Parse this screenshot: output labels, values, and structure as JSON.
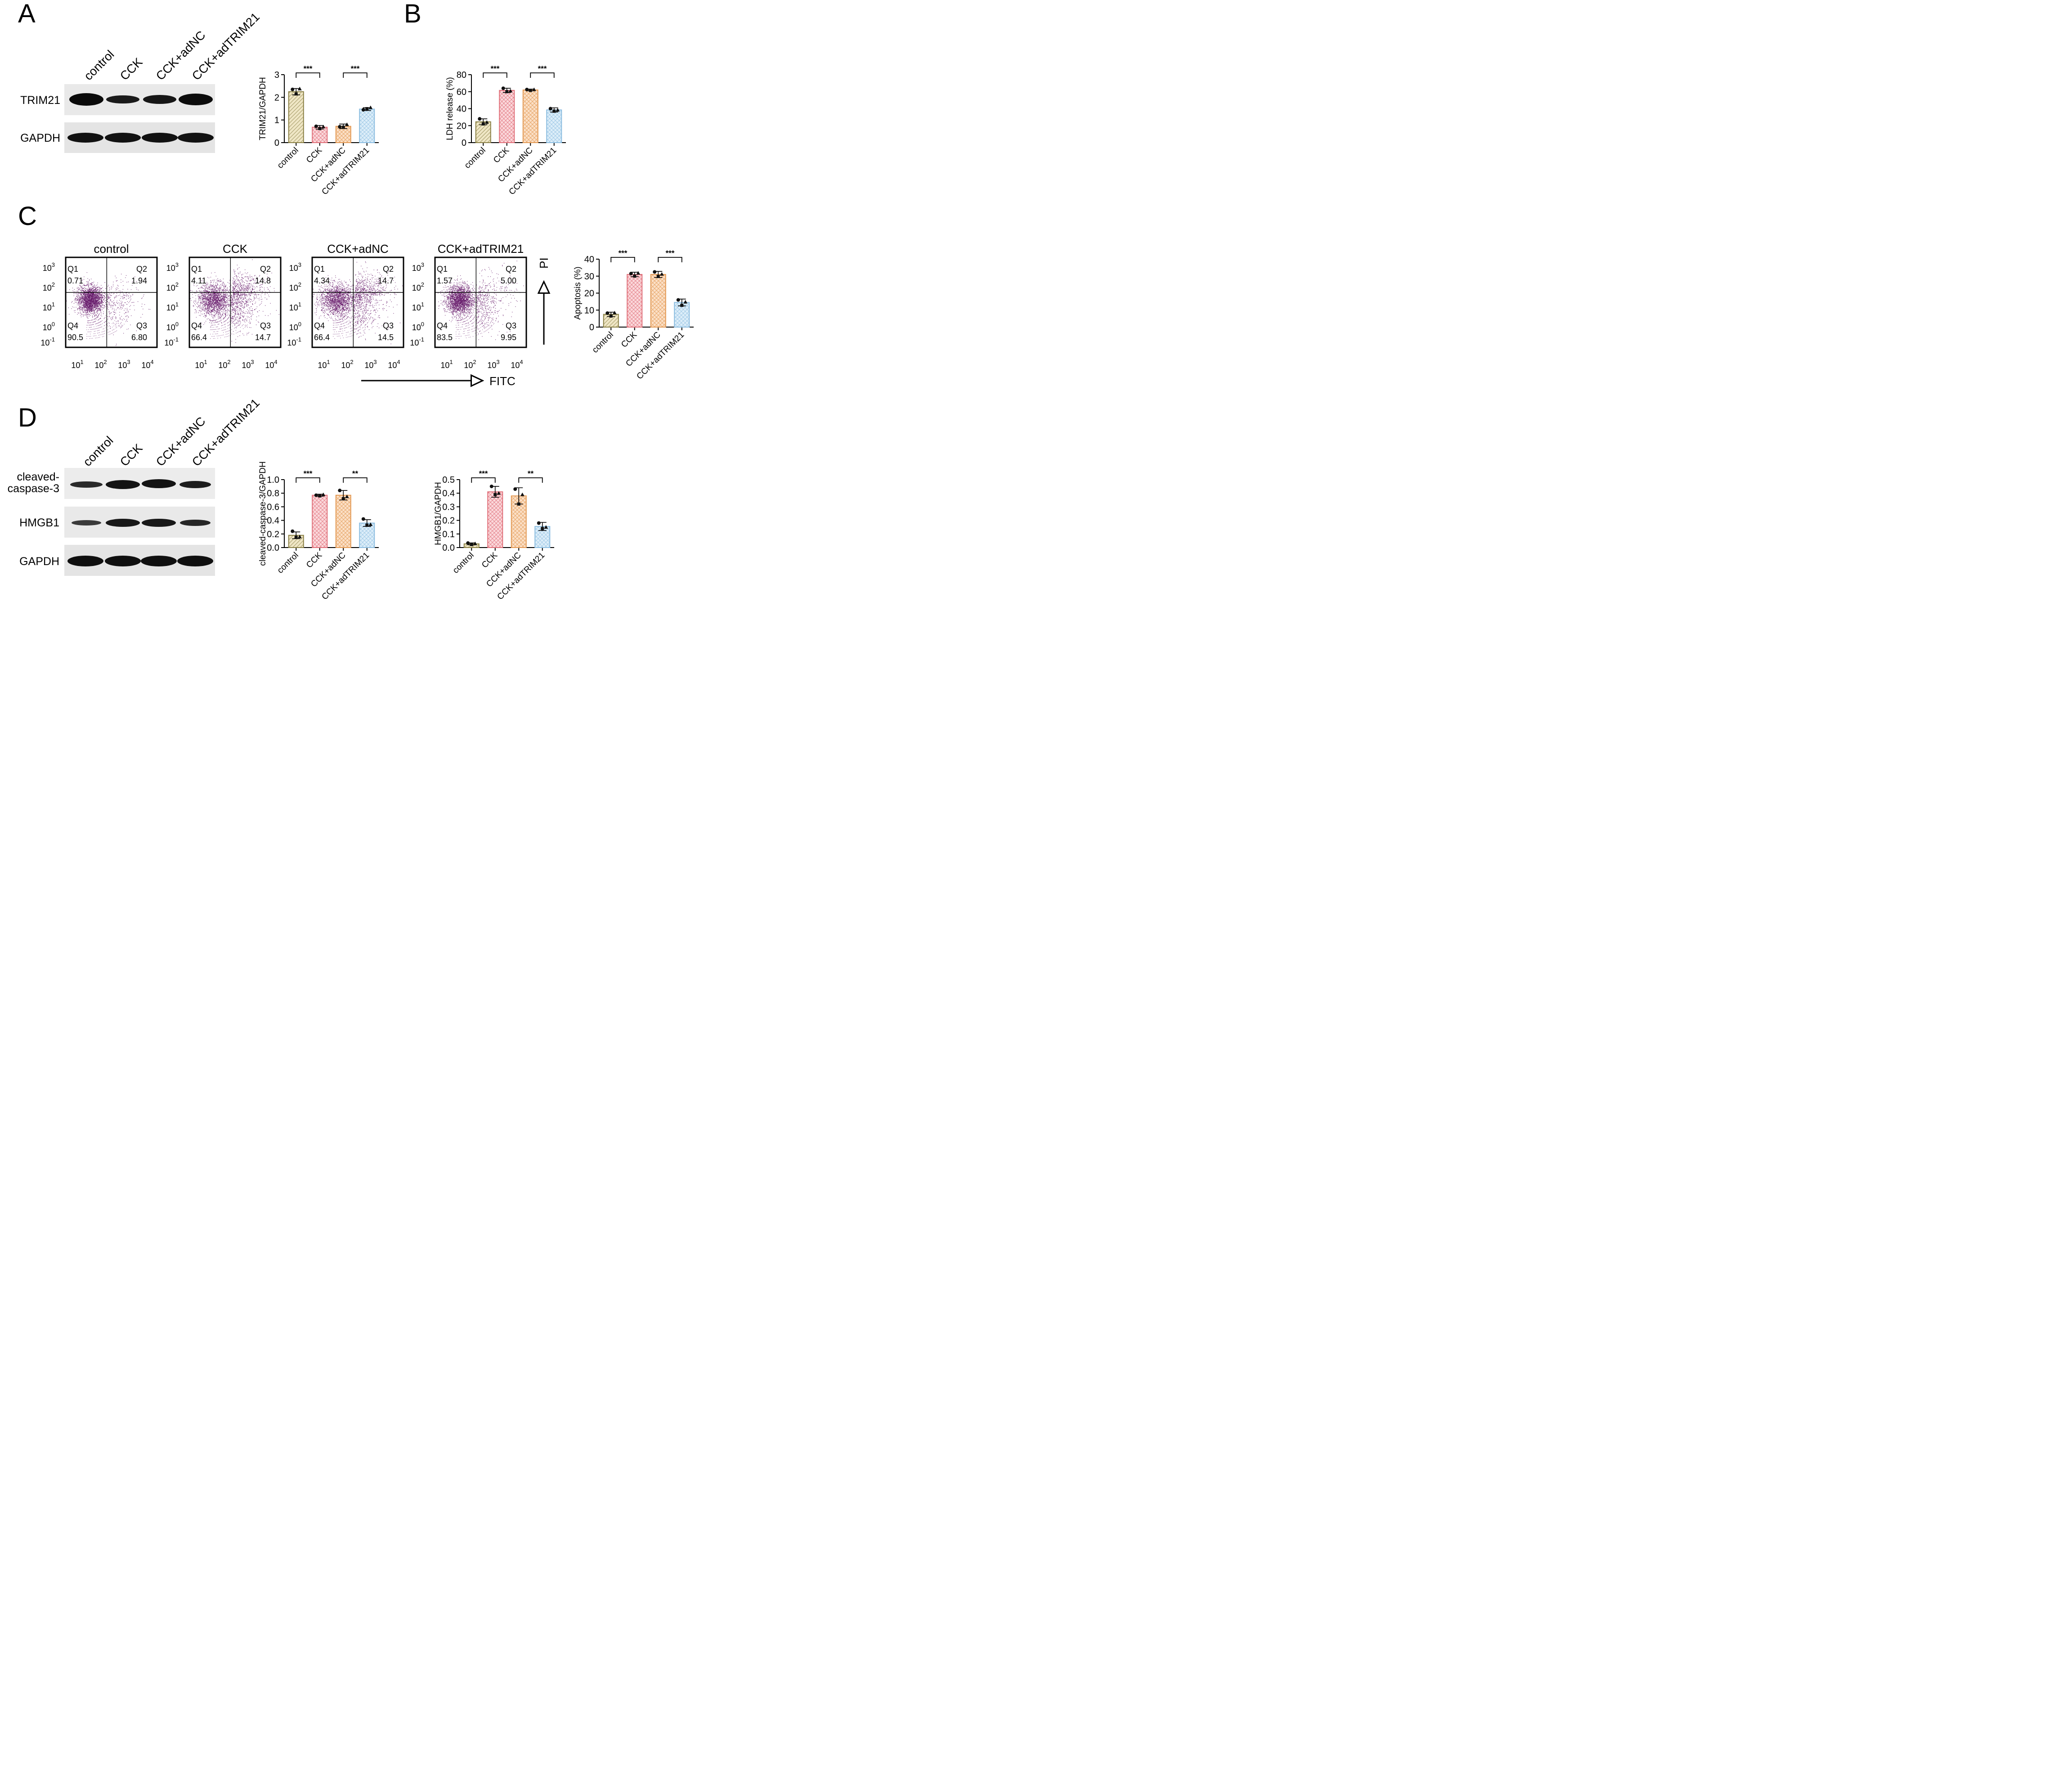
{
  "panel_letters": [
    "A",
    "B",
    "C",
    "D"
  ],
  "groups": [
    "control",
    "CCK",
    "CCK+adNC",
    "CCK+adTRIM21"
  ],
  "group_colors": [
    "#8a8045",
    "#e0707a",
    "#e39a55",
    "#8cbde0"
  ],
  "group_fills": [
    "#efe6c5",
    "#fbd9dc",
    "#fbe0c7",
    "#ddeef9"
  ],
  "dot_color": "#111111",
  "scatter_color": "#6a1f6e",
  "blots": {
    "A": {
      "rows": [
        "TRIM21",
        "GAPDH"
      ]
    },
    "D": {
      "rows": [
        "cleaved-caspase-3",
        "HMGB1",
        "GAPDH"
      ],
      "row0_lines": [
        "cleaved-",
        "caspase-3"
      ]
    }
  },
  "flow": {
    "x_axis_label": "FITC",
    "y_axis_label": "PI",
    "x_ticks": [
      "10",
      "10",
      "10",
      "10"
    ],
    "x_tick_exps": [
      "1",
      "2",
      "3",
      "4"
    ],
    "y_ticks": [
      "10",
      "10",
      "10",
      "10",
      "10"
    ],
    "y_tick_exps": [
      "3",
      "2",
      "1",
      "0",
      "-1"
    ],
    "plots": [
      {
        "title": "control",
        "q1": "0.71",
        "q2": "1.94",
        "q3": "6.80",
        "q4": "90.5"
      },
      {
        "title": "CCK",
        "q1": "4.11",
        "q2": "14.8",
        "q3": "14.7",
        "q4": "66.4"
      },
      {
        "title": "CCK+adNC",
        "q1": "4.34",
        "q2": "14.7",
        "q3": "14.5",
        "q4": "66.4"
      },
      {
        "title": "CCK+adTRIM21",
        "q1": "1.57",
        "q2": "5.00",
        "q3": "9.95",
        "q4": "83.5"
      }
    ],
    "quadrant_labels": [
      "Q1",
      "Q2",
      "Q3",
      "Q4"
    ]
  },
  "chart_data": [
    {
      "id": "A-bar",
      "type": "bar",
      "title": "",
      "categories": [
        "control",
        "CCK",
        "CCK+adNC",
        "CCK+adTRIM21"
      ],
      "values": [
        2.25,
        0.68,
        0.72,
        1.48
      ],
      "errors": [
        0.14,
        0.08,
        0.1,
        0.06
      ],
      "points": [
        [
          2.35,
          2.15,
          2.38
        ],
        [
          0.72,
          0.62,
          0.7
        ],
        [
          0.7,
          0.68,
          0.8
        ],
        [
          1.45,
          1.5,
          1.55
        ]
      ],
      "ylabel": "TRIM21/GAPDH",
      "ylim": [
        0,
        3
      ],
      "yticks": [
        0,
        1,
        2,
        3
      ],
      "ytick_labels": [
        "0",
        "1",
        "2",
        "3"
      ],
      "significance": [
        {
          "from": 0,
          "to": 1,
          "label": "***"
        },
        {
          "from": 2,
          "to": 3,
          "label": "***"
        }
      ]
    },
    {
      "id": "B-bar",
      "type": "bar",
      "title": "",
      "categories": [
        "control",
        "CCK",
        "CCK+adNC",
        "CCK+adTRIM21"
      ],
      "values": [
        24.5,
        61.5,
        62,
        38.5
      ],
      "errors": [
        3.5,
        2.5,
        1,
        2.5
      ],
      "points": [
        [
          28,
          22,
          24
        ],
        [
          64,
          60,
          61
        ],
        [
          62.5,
          61.5,
          62.5
        ],
        [
          40,
          37,
          38.5
        ]
      ],
      "ylabel": "LDH release (%)",
      "ylim": [
        0,
        80
      ],
      "yticks": [
        0,
        20,
        40,
        60,
        80
      ],
      "ytick_labels": [
        "0",
        "20",
        "40",
        "60",
        "80"
      ],
      "significance": [
        {
          "from": 0,
          "to": 1,
          "label": "***"
        },
        {
          "from": 2,
          "to": 3,
          "label": "***"
        }
      ]
    },
    {
      "id": "C-bar",
      "type": "bar",
      "title": "",
      "categories": [
        "control",
        "CCK",
        "CCK+adNC",
        "CCK+adTRIM21"
      ],
      "values": [
        7.5,
        31,
        31,
        14.5
      ],
      "errors": [
        1.3,
        1.3,
        1.8,
        2.0
      ],
      "points": [
        [
          8.2,
          6.5,
          8.4
        ],
        [
          31.5,
          30,
          31.8
        ],
        [
          32.5,
          29.8,
          31.2
        ],
        [
          16,
          12.8,
          14.8
        ]
      ],
      "ylabel": "Apoptosis (%)",
      "ylim": [
        0,
        40
      ],
      "yticks": [
        0,
        10,
        20,
        30,
        40
      ],
      "ytick_labels": [
        "0",
        "10",
        "20",
        "30",
        "40"
      ],
      "significance": [
        {
          "from": 0,
          "to": 1,
          "label": "***"
        },
        {
          "from": 2,
          "to": 3,
          "label": "***"
        }
      ]
    },
    {
      "id": "D-bar1",
      "type": "bar",
      "title": "",
      "categories": [
        "control",
        "CCK",
        "CCK+adNC",
        "CCK+adTRIM21"
      ],
      "values": [
        0.18,
        0.77,
        0.77,
        0.36
      ],
      "errors": [
        0.05,
        0.015,
        0.07,
        0.05
      ],
      "points": [
        [
          0.24,
          0.15,
          0.16
        ],
        [
          0.77,
          0.76,
          0.78
        ],
        [
          0.84,
          0.72,
          0.75
        ],
        [
          0.42,
          0.33,
          0.34
        ]
      ],
      "ylabel": "cleaved-caspase-3/GAPDH",
      "ylim": [
        0,
        1.0
      ],
      "yticks": [
        0,
        0.2,
        0.4,
        0.6,
        0.8,
        1.0
      ],
      "ytick_labels": [
        "0.0",
        "0.2",
        "0.4",
        "0.6",
        "0.8",
        "1.0"
      ],
      "significance": [
        {
          "from": 0,
          "to": 1,
          "label": "***"
        },
        {
          "from": 2,
          "to": 3,
          "label": "**"
        }
      ]
    },
    {
      "id": "D-bar2",
      "type": "bar",
      "title": "",
      "categories": [
        "control",
        "CCK",
        "CCK+adNC",
        "CCK+adTRIM21"
      ],
      "values": [
        0.027,
        0.41,
        0.38,
        0.155
      ],
      "errors": [
        0.007,
        0.04,
        0.06,
        0.03
      ],
      "points": [
        [
          0.033,
          0.022,
          0.029
        ],
        [
          0.45,
          0.39,
          0.4
        ],
        [
          0.43,
          0.32,
          0.39
        ],
        [
          0.18,
          0.14,
          0.15
        ]
      ],
      "ylabel": "HMGB1/GAPDH",
      "ylim": [
        0,
        0.5
      ],
      "yticks": [
        0,
        0.1,
        0.2,
        0.3,
        0.4,
        0.5
      ],
      "ytick_labels": [
        "0.0",
        "0.1",
        "0.2",
        "0.3",
        "0.4",
        "0.5"
      ],
      "significance": [
        {
          "from": 0,
          "to": 1,
          "label": "***"
        },
        {
          "from": 2,
          "to": 3,
          "label": "**"
        }
      ]
    }
  ]
}
